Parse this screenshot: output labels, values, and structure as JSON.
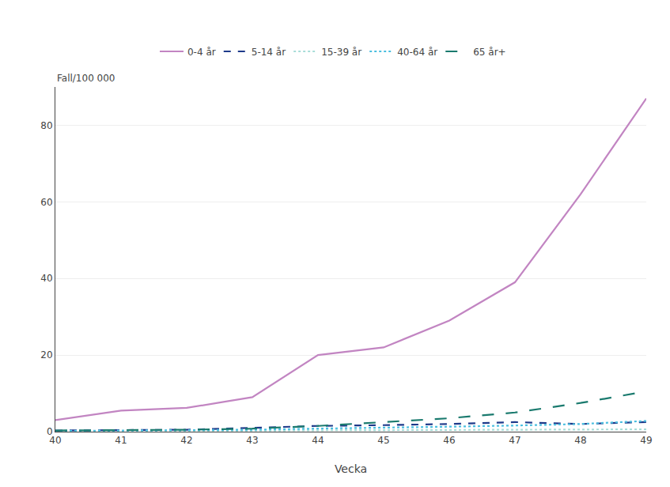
{
  "chart_data": {
    "type": "line",
    "x": [
      40,
      41,
      42,
      43,
      44,
      45,
      46,
      47,
      48,
      49
    ],
    "series": [
      {
        "name": "0-4 år",
        "color": "#c285c2",
        "line_style": "solid",
        "values": [
          3.0,
          5.5,
          6.2,
          9.0,
          20.0,
          22.0,
          29.0,
          39.0,
          62.0,
          87.0
        ]
      },
      {
        "name": "5-14 år",
        "color": "#1e3a8a",
        "line_style": "dash",
        "values": [
          0.3,
          0.4,
          0.5,
          1.0,
          1.5,
          1.7,
          2.0,
          2.5,
          2.0,
          2.5
        ]
      },
      {
        "name": "15-39 år",
        "color": "#a8ddd8",
        "line_style": "dot",
        "values": [
          0.1,
          0.12,
          0.15,
          0.25,
          0.35,
          0.4,
          0.45,
          0.5,
          0.55,
          0.6
        ]
      },
      {
        "name": "40-64 år",
        "color": "#4bbfe0",
        "line_style": "dot",
        "values": [
          0.2,
          0.25,
          0.3,
          0.5,
          0.8,
          1.0,
          1.3,
          1.6,
          2.0,
          2.8
        ]
      },
      {
        "name": "65 år+",
        "color": "#1a7a6e",
        "line_style": "longdash",
        "values": [
          0.3,
          0.4,
          0.5,
          0.8,
          1.5,
          2.5,
          3.5,
          5.0,
          7.5,
          10.5
        ]
      }
    ],
    "x_label": "Vecka",
    "y_label": "Fall/100 000",
    "xlim": [
      40,
      49
    ],
    "xticks": [
      40,
      41,
      42,
      43,
      44,
      45,
      46,
      47,
      48,
      49
    ],
    "ylim": [
      0,
      90
    ],
    "yticks": [
      0,
      20,
      40,
      60,
      80
    ],
    "grid": true,
    "legend": "top"
  }
}
